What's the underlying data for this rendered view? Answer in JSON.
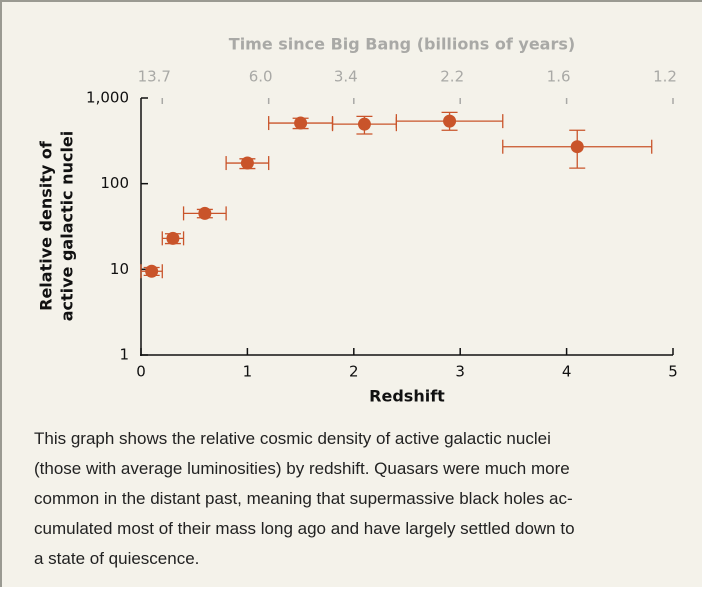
{
  "chart_data": {
    "type": "errorbar_scatter",
    "x_label": "Redshift",
    "y_label": [
      "Relative density of",
      "active galactic nuclei"
    ],
    "x2_label": "Time since Big Bang (billions of years)",
    "x": [
      0.1,
      0.3,
      0.6,
      1.0,
      1.5,
      2.1,
      2.9,
      4.1
    ],
    "values": [
      9.5,
      23,
      45,
      174,
      510,
      495,
      537,
      270
    ],
    "xlow": [
      0,
      0.2,
      0.4,
      0.8,
      1.2,
      1.8,
      2.4,
      3.4
    ],
    "xhigh": [
      0.2,
      0.4,
      0.8,
      1.2,
      1.8,
      2.4,
      3.4,
      4.8
    ],
    "ylow": [
      8.5,
      20,
      40,
      150,
      440,
      380,
      420,
      152
    ],
    "yhigh": [
      10.5,
      26,
      50,
      195,
      580,
      610,
      680,
      420
    ],
    "color": "#c9542a",
    "xlim": [
      0,
      5
    ],
    "xticks": [
      0,
      1,
      2,
      3,
      4,
      5
    ],
    "ylim": [
      1,
      1000
    ],
    "yscale": "log",
    "yticks": [
      1,
      10,
      100,
      {
        "value": 1000,
        "label": "1,000"
      }
    ],
    "x2ticks": [
      {
        "value": 0.2,
        "label": "13.7"
      },
      {
        "value": 1.2,
        "label": "6.0"
      },
      {
        "value": 2.0,
        "label": "3.4"
      },
      {
        "value": 3.0,
        "label": "2.2"
      },
      {
        "value": 4.0,
        "label": "1.6"
      },
      {
        "value": 5.0,
        "label": "1.2"
      }
    ]
  },
  "caption": [
    "This graph shows the relative cosmic density of active galactic nuclei",
    "(those with average luminosities) by redshift. Quasars were much more",
    "common in the distant past, meaning that supermassive black holes ac-",
    "cumulated most of their mass long ago and have largely settled down to",
    "a state of quiescence."
  ]
}
